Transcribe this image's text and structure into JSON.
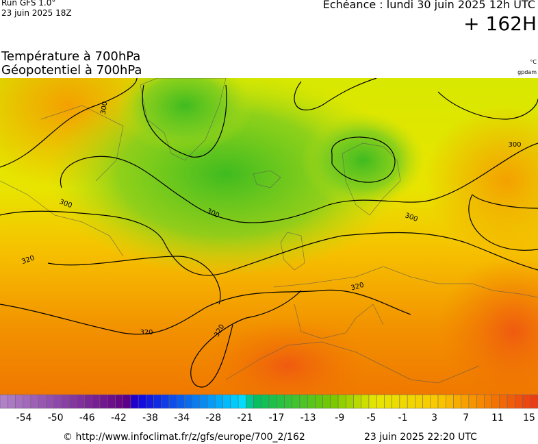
{
  "header": {
    "run": "Run GFS 1.0°",
    "init": "23 juin 2025 18Z",
    "valid": "Echéance : lundi 30 juin 2025 12h UTC",
    "lead": "+ 162H"
  },
  "titles": [
    "Température à 700hPa",
    "Géopotentiel à 700hPa"
  ],
  "units": [
    "°C",
    "gpdam"
  ],
  "contour_labels": [
    "300",
    "300",
    "300",
    "300",
    "300",
    "320",
    "320",
    "320",
    "320"
  ],
  "colorbar": {
    "labels": [
      -54,
      -50,
      -46,
      -42,
      -38,
      -34,
      -28,
      -21,
      -17,
      -13,
      -9,
      -5,
      -1,
      3,
      7,
      11,
      15
    ]
  },
  "footer": {
    "url": "© http://www.infoclimat.fr/z/gfs/europe/700_2/162",
    "generated": "23 juin 2025 22:20 UTC"
  }
}
